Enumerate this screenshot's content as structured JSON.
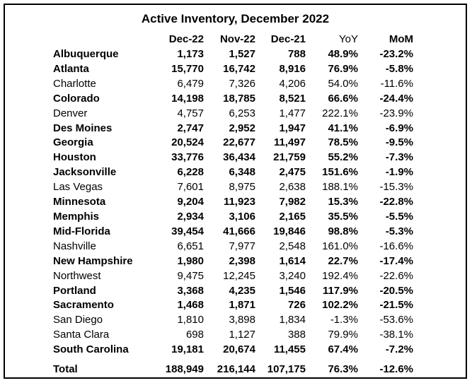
{
  "table": {
    "title": "Active Inventory, December 2022",
    "columns": [
      "",
      "Dec-22",
      "Nov-22",
      "Dec-21",
      "YoY",
      "MoM"
    ],
    "rows": [
      {
        "name": "Albuquerque",
        "dec22": "1,173",
        "nov22": "1,527",
        "dec21": "788",
        "yoy": "48.9%",
        "mom": "-23.2%",
        "bold": true
      },
      {
        "name": "Atlanta",
        "dec22": "15,770",
        "nov22": "16,742",
        "dec21": "8,916",
        "yoy": "76.9%",
        "mom": "-5.8%",
        "bold": true
      },
      {
        "name": "Charlotte",
        "dec22": "6,479",
        "nov22": "7,326",
        "dec21": "4,206",
        "yoy": "54.0%",
        "mom": "-11.6%",
        "bold": false
      },
      {
        "name": "Colorado",
        "dec22": "14,198",
        "nov22": "18,785",
        "dec21": "8,521",
        "yoy": "66.6%",
        "mom": "-24.4%",
        "bold": true
      },
      {
        "name": "Denver",
        "dec22": "4,757",
        "nov22": "6,253",
        "dec21": "1,477",
        "yoy": "222.1%",
        "mom": "-23.9%",
        "bold": false
      },
      {
        "name": "Des Moines",
        "dec22": "2,747",
        "nov22": "2,952",
        "dec21": "1,947",
        "yoy": "41.1%",
        "mom": "-6.9%",
        "bold": true
      },
      {
        "name": "Georgia",
        "dec22": "20,524",
        "nov22": "22,677",
        "dec21": "11,497",
        "yoy": "78.5%",
        "mom": "-9.5%",
        "bold": true
      },
      {
        "name": "Houston",
        "dec22": "33,776",
        "nov22": "36,434",
        "dec21": "21,759",
        "yoy": "55.2%",
        "mom": "-7.3%",
        "bold": true
      },
      {
        "name": "Jacksonville",
        "dec22": "6,228",
        "nov22": "6,348",
        "dec21": "2,475",
        "yoy": "151.6%",
        "mom": "-1.9%",
        "bold": true
      },
      {
        "name": "Las Vegas",
        "dec22": "7,601",
        "nov22": "8,975",
        "dec21": "2,638",
        "yoy": "188.1%",
        "mom": "-15.3%",
        "bold": false
      },
      {
        "name": "Minnesota",
        "dec22": "9,204",
        "nov22": "11,923",
        "dec21": "7,982",
        "yoy": "15.3%",
        "mom": "-22.8%",
        "bold": true
      },
      {
        "name": "Memphis",
        "dec22": "2,934",
        "nov22": "3,106",
        "dec21": "2,165",
        "yoy": "35.5%",
        "mom": "-5.5%",
        "bold": true
      },
      {
        "name": "Mid-Florida",
        "dec22": "39,454",
        "nov22": "41,666",
        "dec21": "19,846",
        "yoy": "98.8%",
        "mom": "-5.3%",
        "bold": true
      },
      {
        "name": "Nashville",
        "dec22": "6,651",
        "nov22": "7,977",
        "dec21": "2,548",
        "yoy": "161.0%",
        "mom": "-16.6%",
        "bold": false
      },
      {
        "name": "New Hampshire",
        "dec22": "1,980",
        "nov22": "2,398",
        "dec21": "1,614",
        "yoy": "22.7%",
        "mom": "-17.4%",
        "bold": true
      },
      {
        "name": "Northwest",
        "dec22": "9,475",
        "nov22": "12,245",
        "dec21": "3,240",
        "yoy": "192.4%",
        "mom": "-22.6%",
        "bold": false
      },
      {
        "name": "Portland",
        "dec22": "3,368",
        "nov22": "4,235",
        "dec21": "1,546",
        "yoy": "117.9%",
        "mom": "-20.5%",
        "bold": true
      },
      {
        "name": "Sacramento",
        "dec22": "1,468",
        "nov22": "1,871",
        "dec21": "726",
        "yoy": "102.2%",
        "mom": "-21.5%",
        "bold": true
      },
      {
        "name": "San Diego",
        "dec22": "1,810",
        "nov22": "3,898",
        "dec21": "1,834",
        "yoy": "-1.3%",
        "mom": "-53.6%",
        "bold": false
      },
      {
        "name": "Santa Clara",
        "dec22": "698",
        "nov22": "1,127",
        "dec21": "388",
        "yoy": "79.9%",
        "mom": "-38.1%",
        "bold": false
      },
      {
        "name": "South Carolina",
        "dec22": "19,181",
        "nov22": "20,674",
        "dec21": "11,455",
        "yoy": "67.4%",
        "mom": "-7.2%",
        "bold": true
      }
    ],
    "total": {
      "name": "Total",
      "dec22": "188,949",
      "nov22": "216,144",
      "dec21": "107,175",
      "yoy": "76.3%",
      "mom": "-12.6%"
    }
  }
}
